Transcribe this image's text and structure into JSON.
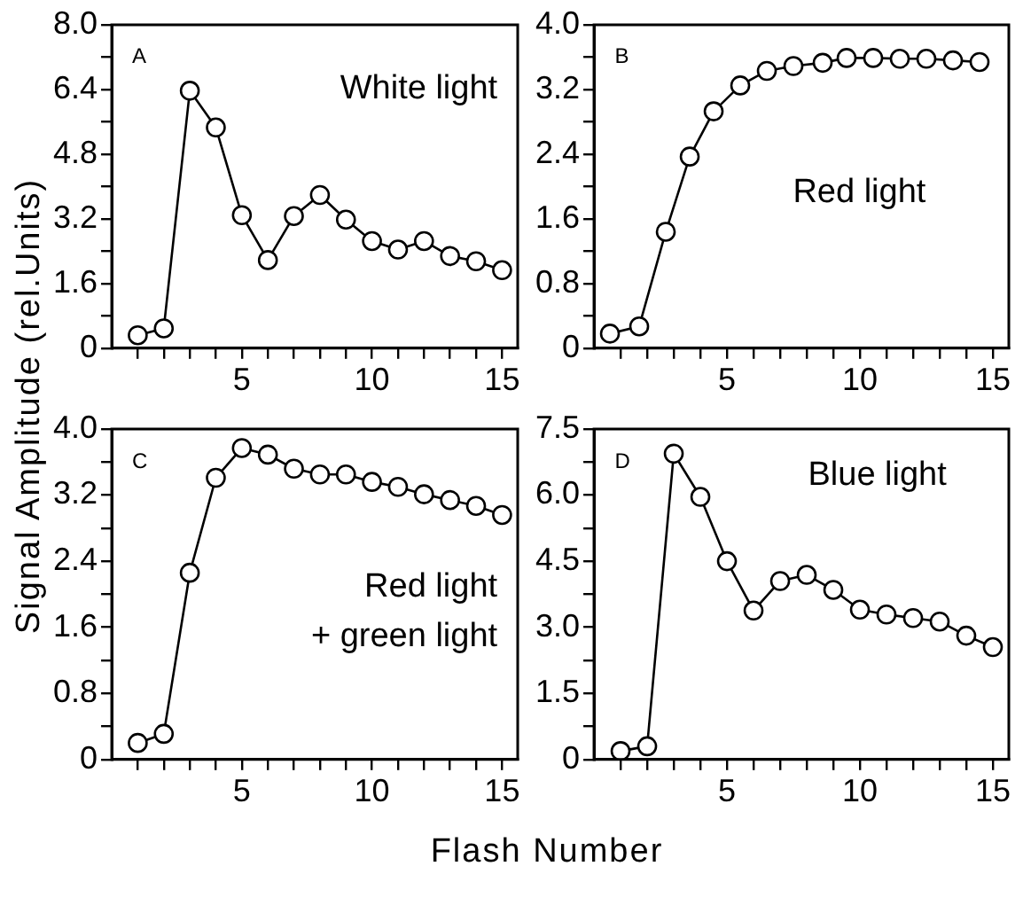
{
  "chart_data": [
    {
      "type": "line",
      "ylabel": "Signal Amplitude (rel.Units)",
      "annotations": [
        "A",
        "White light"
      ],
      "marker": "circle",
      "line_style": "solid",
      "grid": false,
      "legend": false,
      "x": [
        1,
        2,
        3,
        4,
        5,
        6,
        7,
        8,
        9,
        10,
        11,
        12,
        13,
        14,
        15
      ],
      "series": [
        {
          "color": "#000000",
          "values": [
            0.32,
            0.49,
            6.37,
            5.46,
            3.29,
            2.18,
            3.27,
            3.79,
            3.18,
            2.65,
            2.44,
            2.65,
            2.28,
            2.15,
            1.93
          ]
        }
      ],
      "xlim": [
        0,
        15.6
      ],
      "xticks": [
        {
          "value": 1,
          "label": null
        },
        {
          "value": 2,
          "label": null
        },
        {
          "value": 3,
          "label": null
        },
        {
          "value": 4,
          "label": null
        },
        5,
        {
          "value": 6,
          "label": null
        },
        {
          "value": 7,
          "label": null
        },
        {
          "value": 8,
          "label": null
        },
        {
          "value": 9,
          "label": null
        },
        10,
        {
          "value": 11,
          "label": null
        },
        {
          "value": 12,
          "label": null
        },
        {
          "value": 13,
          "label": null
        },
        {
          "value": 14,
          "label": null
        },
        15
      ],
      "ylim": [
        0,
        8
      ],
      "yticks": [
        0,
        {
          "value": 0.8,
          "label": null
        },
        1.6,
        {
          "value": 2.4,
          "label": null
        },
        3.2,
        {
          "value": 4,
          "label": null
        },
        4.8,
        {
          "value": 5.6,
          "label": null
        },
        6.4,
        {
          "value": 7.2,
          "label": null
        },
        {
          "value": 8,
          "label": "8.0"
        }
      ]
    },
    {
      "type": "line",
      "annotations": [
        "B",
        "Red light"
      ],
      "marker": "circle",
      "line_style": "solid",
      "grid": false,
      "legend": false,
      "x": [
        0.6,
        1.7,
        2.7,
        3.6,
        4.5,
        5.5,
        6.5,
        7.5,
        8.6,
        9.5,
        10.5,
        11.5,
        12.5,
        13.5,
        14.5
      ],
      "series": [
        {
          "color": "#000000",
          "values": [
            0.18,
            0.27,
            1.44,
            2.37,
            2.93,
            3.25,
            3.43,
            3.49,
            3.53,
            3.59,
            3.59,
            3.58,
            3.58,
            3.56,
            3.54
          ]
        }
      ],
      "xlim": [
        0,
        15.6
      ],
      "xticks": [
        {
          "value": 1,
          "label": null
        },
        {
          "value": 2,
          "label": null
        },
        {
          "value": 3,
          "label": null
        },
        {
          "value": 4,
          "label": null
        },
        5,
        {
          "value": 6,
          "label": null
        },
        {
          "value": 7,
          "label": null
        },
        {
          "value": 8,
          "label": null
        },
        {
          "value": 9,
          "label": null
        },
        10,
        {
          "value": 11,
          "label": null
        },
        {
          "value": 12,
          "label": null
        },
        {
          "value": 13,
          "label": null
        },
        {
          "value": 14,
          "label": null
        },
        15
      ],
      "ylim": [
        0,
        4
      ],
      "yticks": [
        0,
        {
          "value": 0.4,
          "label": null
        },
        0.8,
        {
          "value": 1.2,
          "label": null
        },
        1.6,
        {
          "value": 2,
          "label": null
        },
        2.4,
        {
          "value": 2.8,
          "label": null
        },
        3.2,
        {
          "value": 3.6,
          "label": null
        },
        {
          "value": 4,
          "label": "4.0"
        }
      ]
    },
    {
      "type": "line",
      "xlabel": "Flash Number",
      "annotations": [
        "C",
        "Red light",
        "+ green light"
      ],
      "marker": "circle",
      "line_style": "solid",
      "grid": false,
      "legend": false,
      "x": [
        1,
        2,
        3,
        4,
        5,
        6,
        7,
        8,
        9,
        10,
        11,
        12,
        13,
        14,
        15
      ],
      "series": [
        {
          "color": "#000000",
          "values": [
            0.2,
            0.31,
            2.26,
            3.41,
            3.77,
            3.69,
            3.52,
            3.45,
            3.45,
            3.36,
            3.3,
            3.21,
            3.14,
            3.07,
            2.96
          ]
        }
      ],
      "xlim": [
        0,
        15.6
      ],
      "xticks": [
        {
          "value": 1,
          "label": null
        },
        {
          "value": 2,
          "label": null
        },
        {
          "value": 3,
          "label": null
        },
        {
          "value": 4,
          "label": null
        },
        5,
        {
          "value": 6,
          "label": null
        },
        {
          "value": 7,
          "label": null
        },
        {
          "value": 8,
          "label": null
        },
        {
          "value": 9,
          "label": null
        },
        10,
        {
          "value": 11,
          "label": null
        },
        {
          "value": 12,
          "label": null
        },
        {
          "value": 13,
          "label": null
        },
        {
          "value": 14,
          "label": null
        },
        15
      ],
      "ylim": [
        0,
        4
      ],
      "yticks": [
        0,
        {
          "value": 0.4,
          "label": null
        },
        0.8,
        {
          "value": 1.2,
          "label": null
        },
        1.6,
        {
          "value": 2,
          "label": null
        },
        2.4,
        {
          "value": 2.8,
          "label": null
        },
        3.2,
        {
          "value": 3.6,
          "label": null
        },
        {
          "value": 4,
          "label": "4.0"
        }
      ]
    },
    {
      "type": "line",
      "annotations": [
        "D",
        "Blue light"
      ],
      "marker": "circle",
      "line_style": "solid",
      "grid": false,
      "legend": false,
      "x": [
        1,
        2,
        3,
        4,
        5,
        6,
        7,
        8,
        9,
        10,
        11,
        12,
        13,
        14,
        15
      ],
      "series": [
        {
          "color": "#000000",
          "values": [
            0.19,
            0.3,
            6.94,
            5.96,
            4.5,
            3.38,
            4.05,
            4.19,
            3.85,
            3.4,
            3.29,
            3.21,
            3.13,
            2.81,
            2.55
          ]
        }
      ],
      "xlim": [
        0,
        15.6
      ],
      "xticks": [
        {
          "value": 1,
          "label": null
        },
        {
          "value": 2,
          "label": null
        },
        {
          "value": 3,
          "label": null
        },
        {
          "value": 4,
          "label": null
        },
        5,
        {
          "value": 6,
          "label": null
        },
        {
          "value": 7,
          "label": null
        },
        {
          "value": 8,
          "label": null
        },
        {
          "value": 9,
          "label": null
        },
        10,
        {
          "value": 11,
          "label": null
        },
        {
          "value": 12,
          "label": null
        },
        {
          "value": 13,
          "label": null
        },
        {
          "value": 14,
          "label": null
        },
        15
      ],
      "ylim": [
        0,
        7.5
      ],
      "yticks": [
        0,
        {
          "value": 0.75,
          "label": null
        },
        1.5,
        {
          "value": 2.25,
          "label": null
        },
        {
          "value": 3,
          "label": "3.0"
        },
        {
          "value": 3.75,
          "label": null
        },
        4.5,
        {
          "value": 5.25,
          "label": null
        },
        {
          "value": 6,
          "label": "6.0"
        },
        {
          "value": 6.75,
          "label": null
        },
        7.5
      ]
    }
  ]
}
